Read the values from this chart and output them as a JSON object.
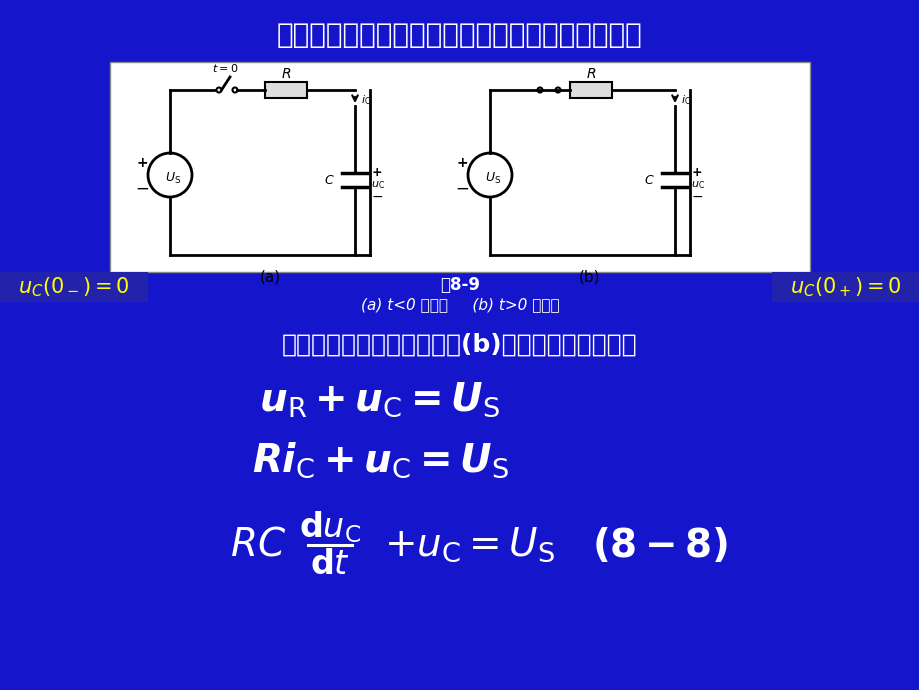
{
  "bg_color": "#1515cc",
  "title_text": "其电压电流的变化规律，可以通过以下计算求得。",
  "title_color": "#ffffff",
  "title_fontsize": 20,
  "label_left_color": "#ffff00",
  "label_right_color": "#ffff00",
  "label_bg": "#2222aa",
  "fig_caption": "图8-9",
  "fig_sub_caption": "(a) t<0 的电路     (b) t>0 的电路",
  "caption_color": "#ffffff",
  "desc_text": "以电容电压为变量，列出图(b)所示电路的微分方程",
  "desc_color": "#ffffff",
  "desc_fontsize": 18,
  "eq_color": "#ffffff",
  "eq_fontsize": 28
}
